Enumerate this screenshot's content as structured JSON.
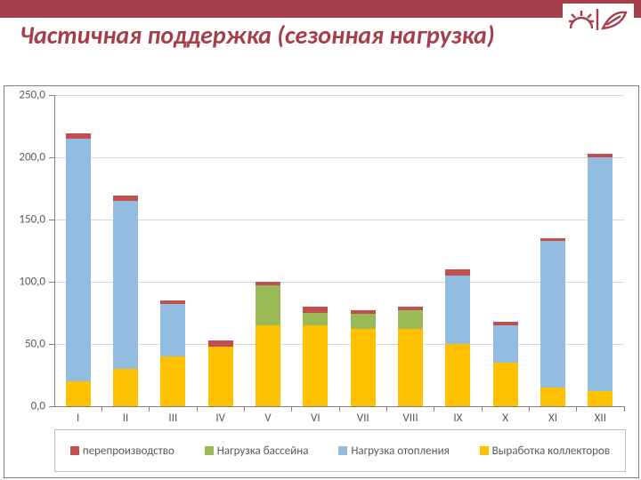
{
  "header": {
    "stripe_color": "#a53e4a",
    "title": "Частичная поддержка (сезонная нагрузка)",
    "title_color": "#a53e4a",
    "title_fontsize": 28
  },
  "logo": {
    "bg": "#ffffff",
    "stroke": "#a53e4a"
  },
  "chart": {
    "type": "stacked-bar",
    "background_color": "#ffffff",
    "grid_color": "#d9d9d9",
    "axis_color": "#808080",
    "label_color": "#595959",
    "label_fontsize": 13,
    "ylim": [
      0,
      250
    ],
    "ytick_step": 50,
    "yticks": [
      "0,0",
      "50,0",
      "100,0",
      "150,0",
      "200,0",
      "250,0"
    ],
    "categories": [
      "I",
      "II",
      "III",
      "IV",
      "V",
      "VI",
      "VII",
      "VIII",
      "IX",
      "X",
      "XI",
      "XII"
    ],
    "bar_width": 0.52,
    "series": [
      {
        "key": "collectors",
        "label": "Выработка коллекторов",
        "color": "#ffc000"
      },
      {
        "key": "heating",
        "label": "Нагрузка отопления",
        "color": "#92bde1"
      },
      {
        "key": "pool",
        "label": "Нагрузка бассейна",
        "color": "#9bbb59"
      },
      {
        "key": "over",
        "label": "перепроизводство",
        "color": "#c0504d"
      }
    ],
    "legend_order": [
      "over",
      "pool",
      "heating",
      "collectors"
    ],
    "data": {
      "collectors": [
        20,
        30,
        40,
        48,
        65,
        65,
        62,
        62,
        50,
        35,
        15,
        12
      ],
      "heating": [
        195,
        135,
        42,
        0,
        0,
        0,
        0,
        0,
        55,
        30,
        118,
        188
      ],
      "pool": [
        0,
        0,
        0,
        0,
        32,
        10,
        12,
        15,
        0,
        0,
        0,
        0
      ],
      "over": [
        4,
        4,
        3,
        5,
        3,
        5,
        3,
        3,
        5,
        3,
        2,
        3
      ]
    }
  }
}
